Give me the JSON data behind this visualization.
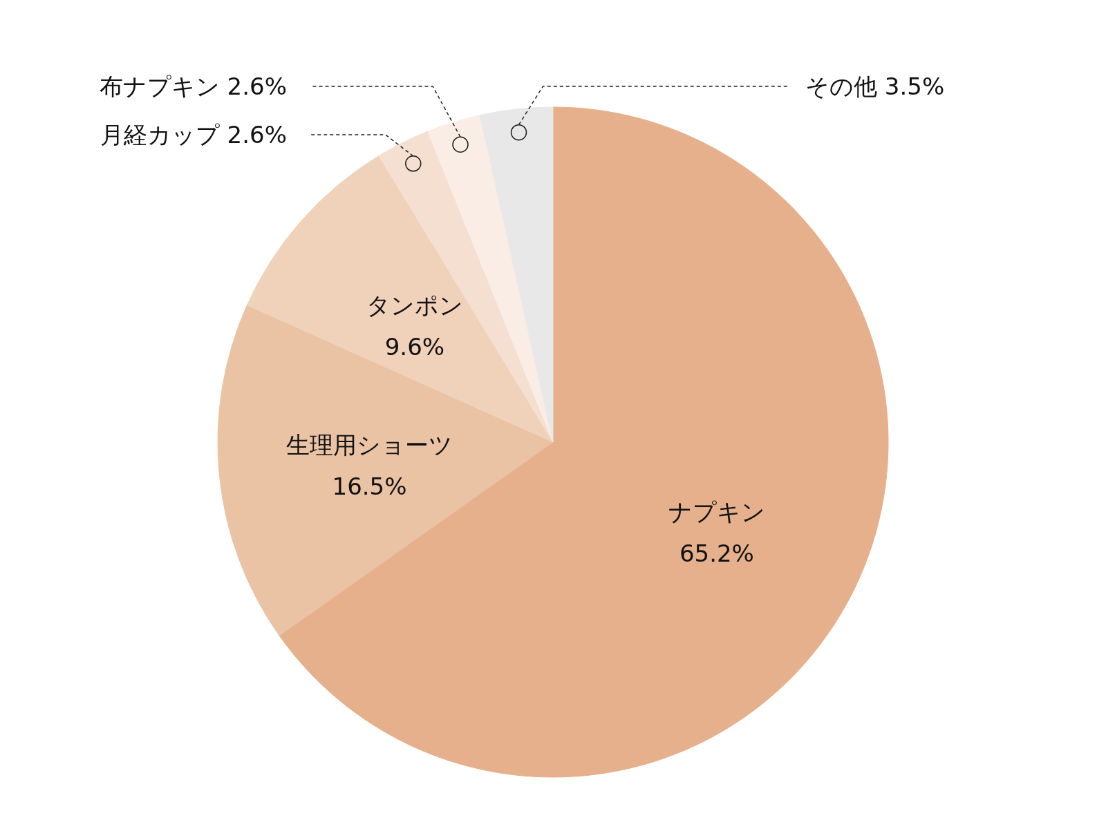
{
  "chart_data": {
    "type": "pie",
    "categories": [
      "ナプキン",
      "生理用ショーツ",
      "タンポン",
      "月経カップ",
      "布ナプキン",
      "その他"
    ],
    "values": [
      65.2,
      16.5,
      9.6,
      2.6,
      2.6,
      3.5
    ],
    "value_labels": [
      "65.2%",
      "16.5%",
      "9.6%",
      "2.6%",
      "2.6%",
      "3.5%"
    ],
    "colors": [
      "#e5b08b",
      "#eac3a5",
      "#f0d1ba",
      "#f4dfd0",
      "#f9ede6",
      "#e8e8e8"
    ]
  }
}
